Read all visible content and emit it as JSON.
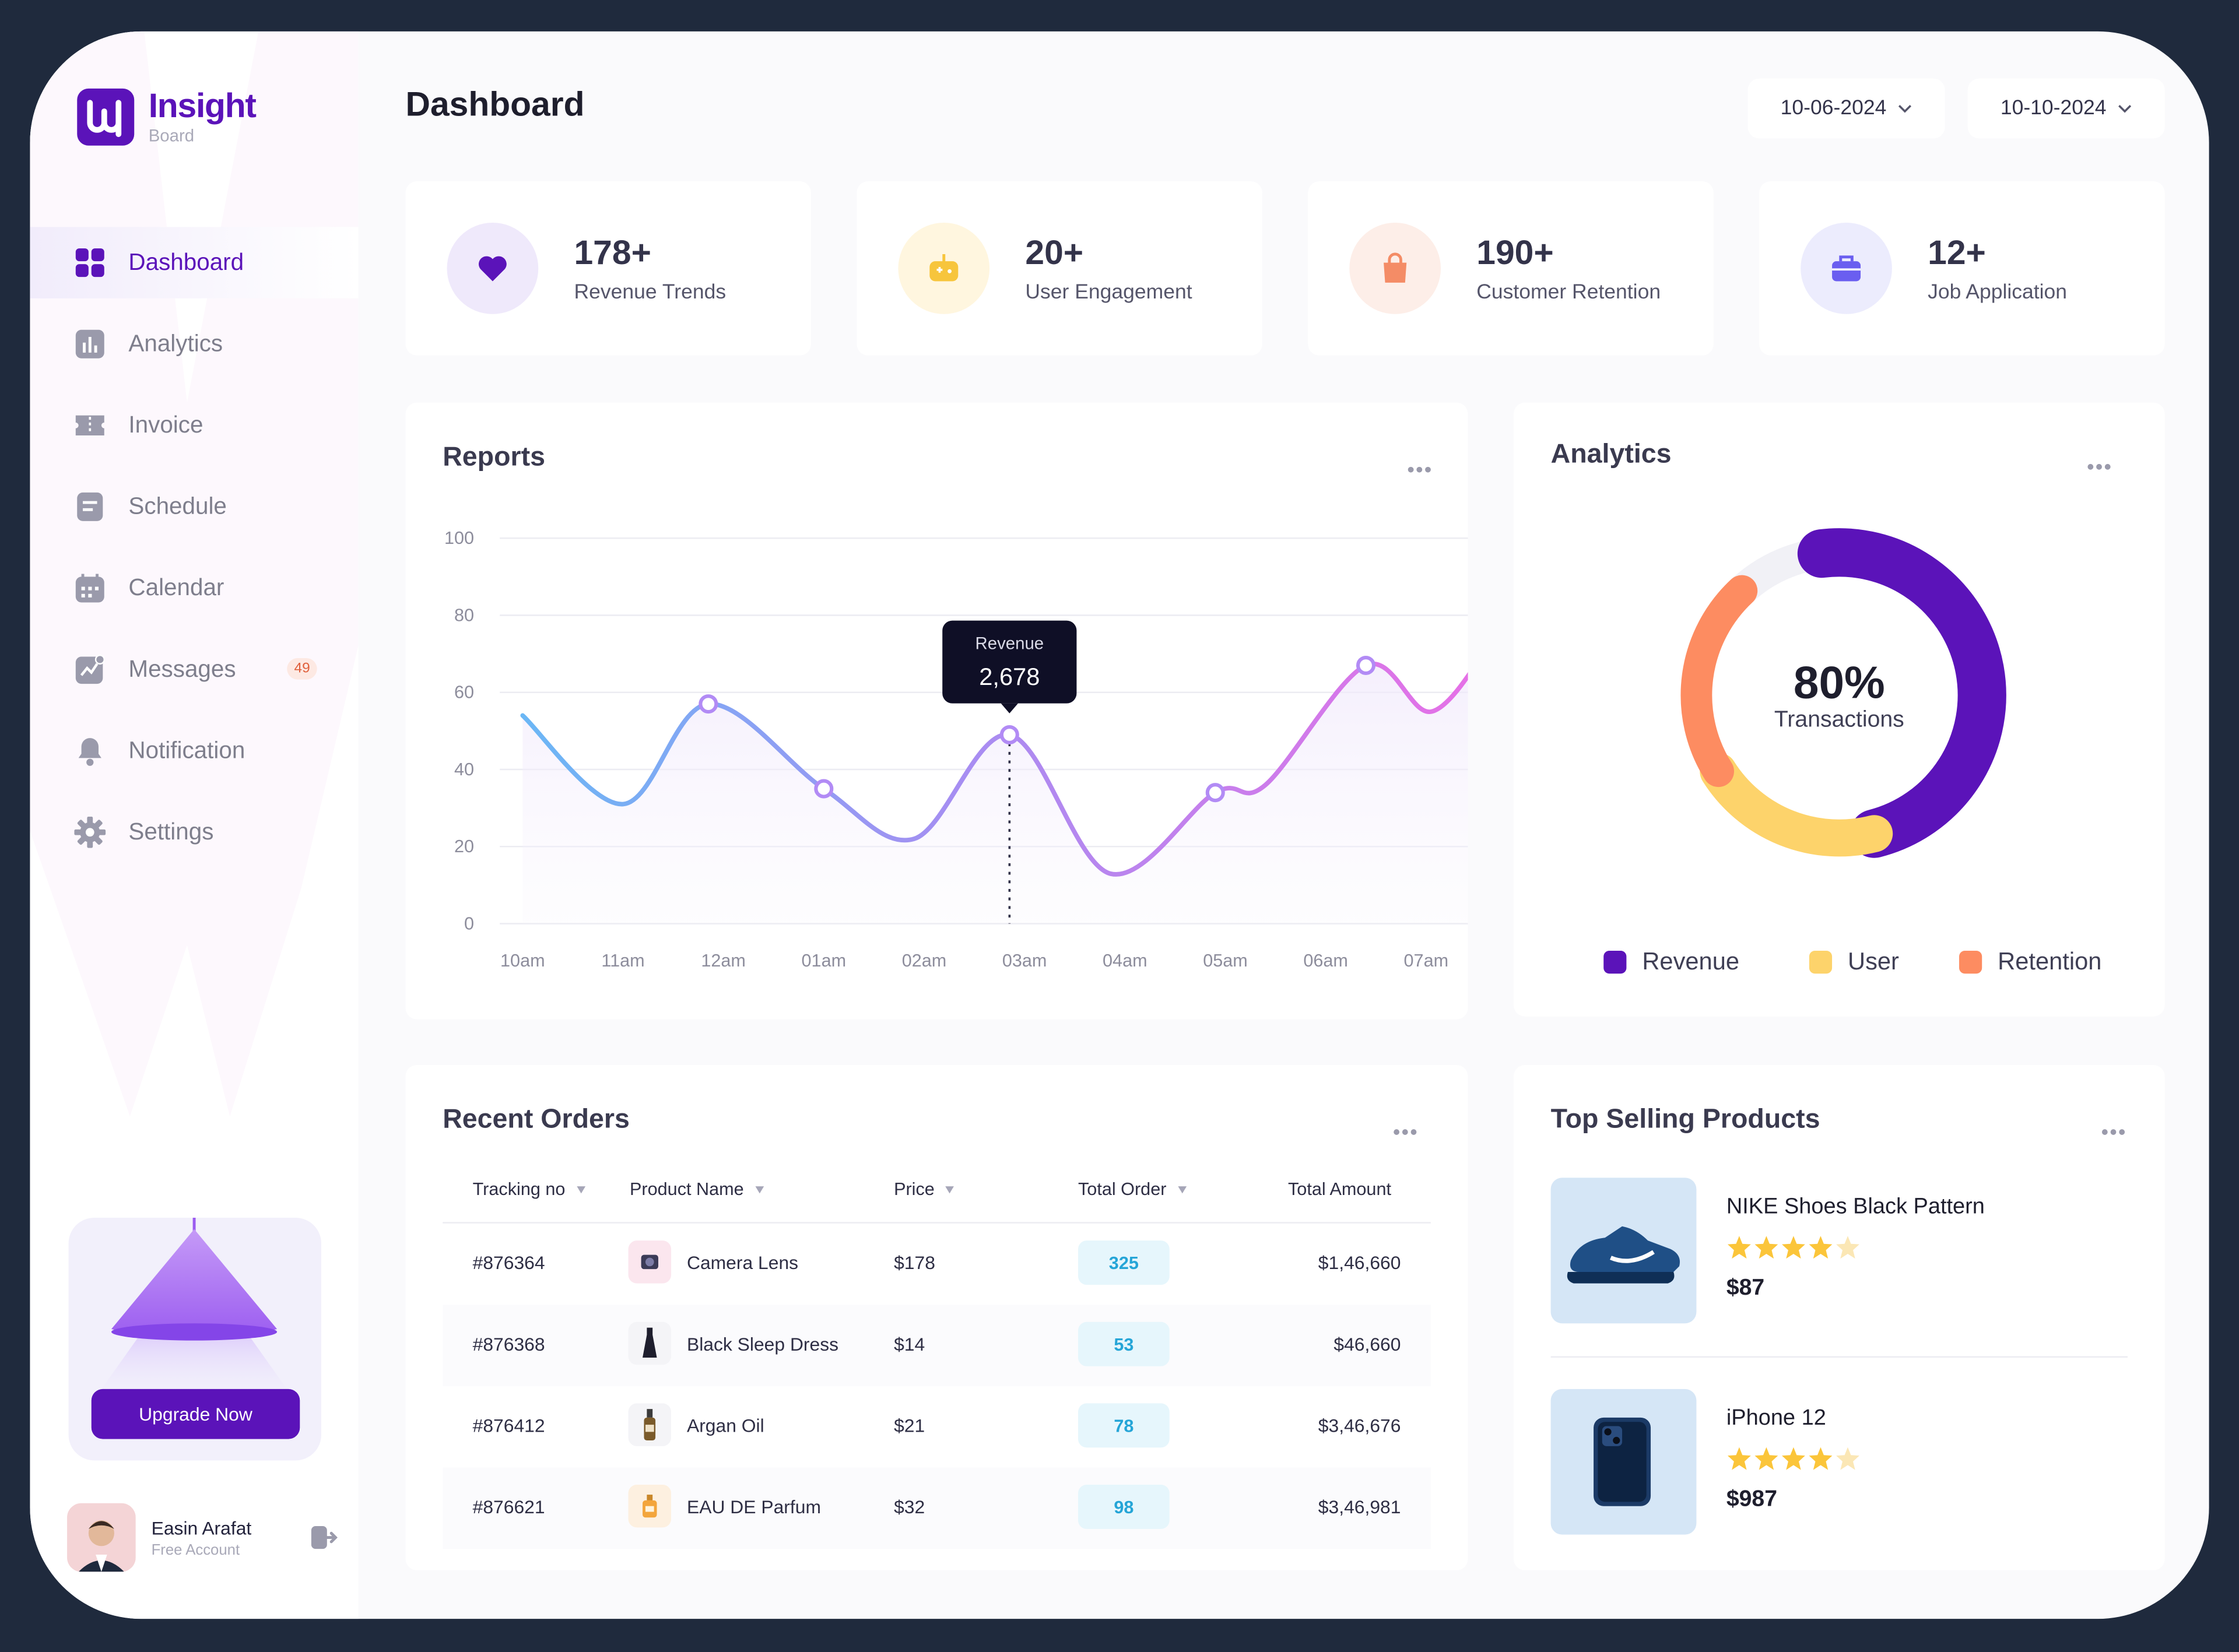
{
  "app": {
    "name": "Insight",
    "subtitle": "Board",
    "brand_color": "#5b13b9"
  },
  "sidebar": {
    "items": [
      {
        "label": "Dashboard",
        "icon": "grid-icon",
        "active": true
      },
      {
        "label": "Analytics",
        "icon": "bar-chart-icon"
      },
      {
        "label": "Invoice",
        "icon": "ticket-icon"
      },
      {
        "label": "Schedule",
        "icon": "document-icon"
      },
      {
        "label": "Calendar",
        "icon": "calendar-icon"
      },
      {
        "label": "Messages",
        "icon": "activity-icon",
        "badge": "49"
      },
      {
        "label": "Notification",
        "icon": "bell-icon"
      },
      {
        "label": "Settings",
        "icon": "gear-icon"
      }
    ],
    "upgrade_label": "Upgrade Now",
    "user": {
      "name": "Easin Arafat",
      "plan": "Free Account"
    }
  },
  "header": {
    "title": "Dashboard",
    "date_from": "10-06-2024",
    "date_to": "10-10-2024"
  },
  "stats": [
    {
      "value": "178+",
      "label": "Revenue Trends",
      "icon": "heart-icon",
      "bg": "#efe9fb",
      "color": "#5b13b9"
    },
    {
      "value": "20+",
      "label": "User Engagement",
      "icon": "game-icon",
      "bg": "#fff6df",
      "color": "#f7c53c"
    },
    {
      "value": "190+",
      "label": "Customer Retention",
      "icon": "shopping-bag-icon",
      "bg": "#fdeee8",
      "color": "#f48c66"
    },
    {
      "value": "12+",
      "label": "Job Application",
      "icon": "briefcase-icon",
      "bg": "#ececfd",
      "color": "#6a5ef0"
    }
  ],
  "reports": {
    "title": "Reports",
    "tooltip": {
      "label": "Revenue",
      "value": "2,678"
    },
    "chart_data": {
      "type": "line",
      "x": [
        "10am",
        "11am",
        "12am",
        "01am",
        "02am",
        "03am",
        "04am",
        "05am",
        "06am",
        "07am"
      ],
      "ylim": [
        0,
        100
      ],
      "yticks": [
        "100",
        "80",
        "60",
        "40",
        "20",
        "0"
      ],
      "points": [
        {
          "x": 0,
          "y": 54
        },
        {
          "x": 1.0,
          "y": 31
        },
        {
          "x": 1.85,
          "y": 57
        },
        {
          "x": 3.0,
          "y": 35
        },
        {
          "x": 3.9,
          "y": 22
        },
        {
          "x": 4.85,
          "y": 49
        },
        {
          "x": 5.85,
          "y": 13
        },
        {
          "x": 6.9,
          "y": 34
        },
        {
          "x": 7.4,
          "y": 36
        },
        {
          "x": 8.4,
          "y": 67
        },
        {
          "x": 9.05,
          "y": 55
        },
        {
          "x": 9.65,
          "y": 73
        }
      ],
      "markers": [
        2,
        3,
        5,
        7,
        9
      ],
      "highlight_index": 5,
      "grid": true
    }
  },
  "analytics": {
    "title": "Analytics",
    "center_value": "80%",
    "center_label": "Transactions",
    "chart_data": {
      "type": "pie",
      "labels": [
        "Revenue",
        "User",
        "Retention"
      ],
      "values": [
        48,
        20,
        22
      ],
      "colors": [
        "#5b13b9",
        "#fdd36b",
        "#fd8c61"
      ]
    }
  },
  "orders": {
    "title": "Recent Orders",
    "columns": [
      "Tracking no",
      "Product Name",
      "Price",
      "Total Order",
      "Total Amount"
    ],
    "rows": [
      {
        "tracking": "#876364",
        "product": "Camera Lens",
        "price": "$178",
        "orders": "325",
        "amount": "$1,46,660",
        "icon": "camera-lens-icon"
      },
      {
        "tracking": "#876368",
        "product": "Black Sleep Dress",
        "price": "$14",
        "orders": "53",
        "amount": "$46,660",
        "icon": "dress-icon"
      },
      {
        "tracking": "#876412",
        "product": "Argan Oil",
        "price": "$21",
        "orders": "78",
        "amount": "$3,46,676",
        "icon": "oil-bottle-icon"
      },
      {
        "tracking": "#876621",
        "product": "EAU DE Parfum",
        "price": "$32",
        "orders": "98",
        "amount": "$3,46,981",
        "icon": "perfume-icon"
      }
    ]
  },
  "top_products": {
    "title": "Top Selling Products",
    "items": [
      {
        "name": "NIKE Shoes Black Pattern",
        "price": "$87",
        "rating": 4,
        "image": "shoe-image"
      },
      {
        "name": "iPhone 12",
        "price": "$987",
        "rating": 4,
        "image": "phone-image"
      }
    ]
  }
}
